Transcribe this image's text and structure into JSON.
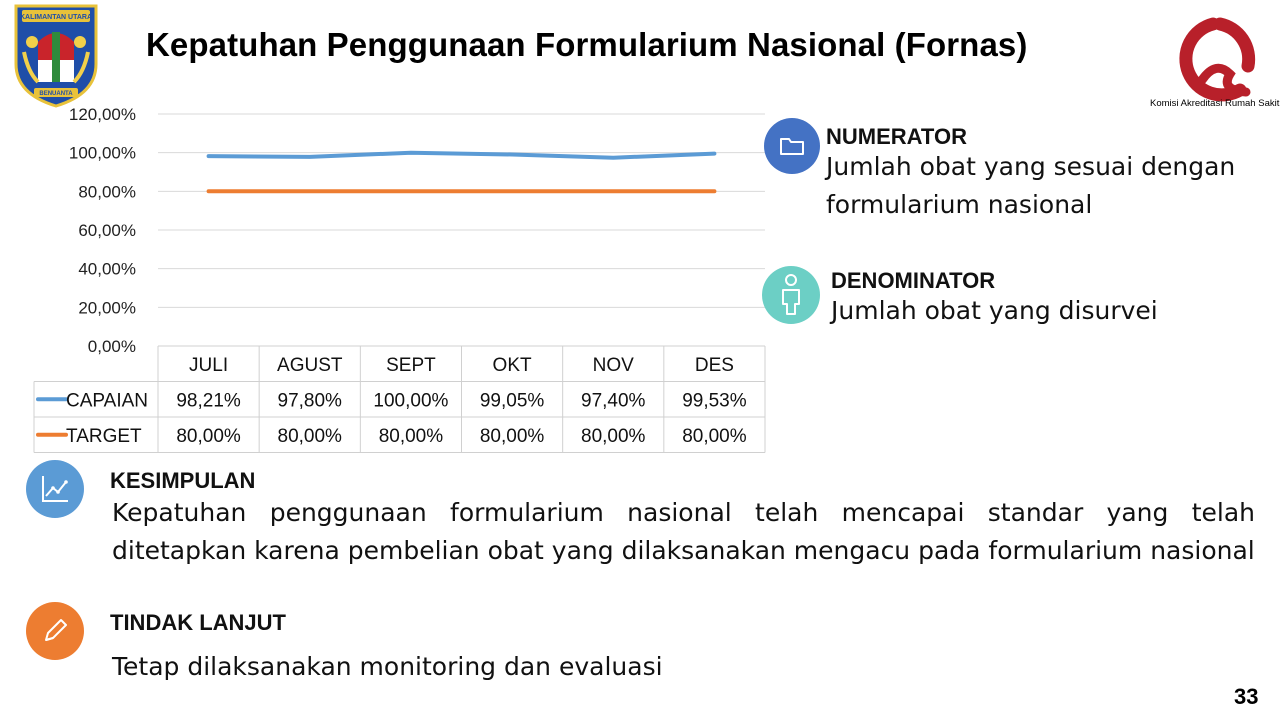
{
  "header": {
    "title": "Kepatuhan Penggunaan Formularium Nasional (Fornas)",
    "left_logo_text": [
      "KALIMANTAN UTARA",
      "BENUANTA"
    ],
    "right_logo_text": "Komisi Akreditasi Rumah Sakit"
  },
  "chart_data": {
    "type": "line",
    "categories": [
      "JULI",
      "AGUST",
      "SEPT",
      "OKT",
      "NOV",
      "DES"
    ],
    "series": [
      {
        "name": "CAPAIAN",
        "color": "#5B9BD5",
        "values": [
          98.21,
          97.8,
          100.0,
          99.05,
          97.4,
          99.53
        ],
        "labels": [
          "98,21%",
          "97,80%",
          "100,00%",
          "99,05%",
          "97,40%",
          "99,53%"
        ]
      },
      {
        "name": "TARGET",
        "color": "#ED7D31",
        "values": [
          80.0,
          80.0,
          80.0,
          80.0,
          80.0,
          80.0
        ],
        "labels": [
          "80,00%",
          "80,00%",
          "80,00%",
          "80,00%",
          "80,00%",
          "80,00%"
        ]
      }
    ],
    "ylim": [
      0,
      120
    ],
    "yticks": [
      0,
      20,
      40,
      60,
      80,
      100,
      120
    ],
    "ytick_labels": [
      "0,00%",
      "20,00%",
      "40,00%",
      "60,00%",
      "80,00%",
      "100,00%",
      "120,00%"
    ],
    "grid": true,
    "data_table": true
  },
  "numerator": {
    "icon": "folder-icon",
    "heading": "NUMERATOR",
    "text": "Jumlah  obat yang sesuai dengan formularium nasional"
  },
  "denominator": {
    "icon": "person-icon",
    "heading": "DENOMINATOR",
    "text": "Jumlah obat yang disurvei"
  },
  "kesimpulan": {
    "icon": "chart-icon",
    "heading": "KESIMPULAN",
    "text": "Kepatuhan penggunaan formularium nasional telah mencapai standar yang telah ditetapkan karena pembelian obat yang dilaksanakan mengacu pada formularium nasional"
  },
  "tindak_lanjut": {
    "icon": "pencil-icon",
    "heading": "TINDAK LANJUT",
    "text": "Tetap dilaksanakan monitoring dan evaluasi"
  },
  "page_number": "33",
  "colors": {
    "capaian": "#5B9BD5",
    "target": "#ED7D31",
    "numerator": "#4472C4",
    "denominator": "#6CCFC5",
    "kesimpulan": "#5B9BD5",
    "tindak": "#ED7D31"
  }
}
